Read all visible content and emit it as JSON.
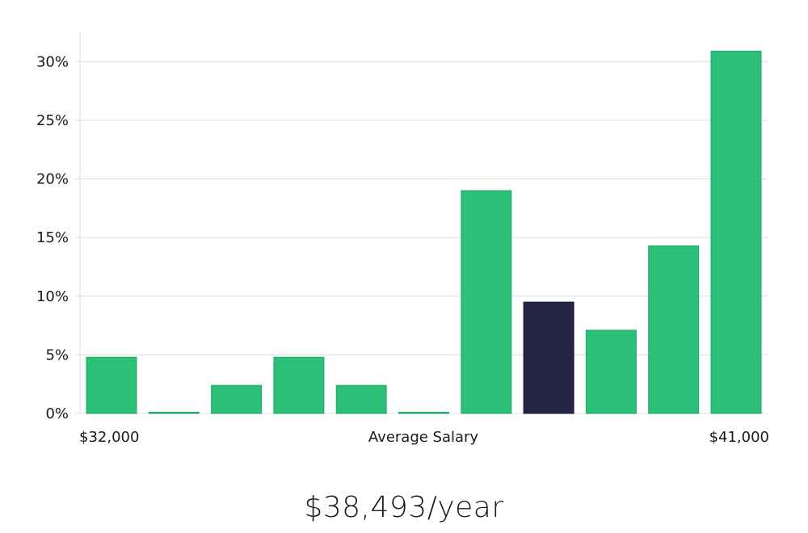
{
  "chart_data": {
    "type": "bar",
    "xlabel": "Average Salary",
    "x_min_label": "$32,000",
    "x_max_label": "$41,000",
    "ylim": [
      0,
      32
    ],
    "yticks": [
      0,
      5,
      10,
      15,
      20,
      25,
      30
    ],
    "ytick_labels": [
      "0%",
      "5%",
      "10%",
      "15%",
      "20%",
      "25%",
      "30%"
    ],
    "values": [
      4.8,
      0.1,
      2.4,
      4.8,
      2.4,
      0.1,
      19.0,
      9.5,
      7.1,
      14.3,
      30.9
    ],
    "highlight_index": 7,
    "grid": true,
    "colors": {
      "bar": "#2bbf78",
      "bar_highlight": "#262445"
    }
  },
  "salary_display": "$38,493/year"
}
